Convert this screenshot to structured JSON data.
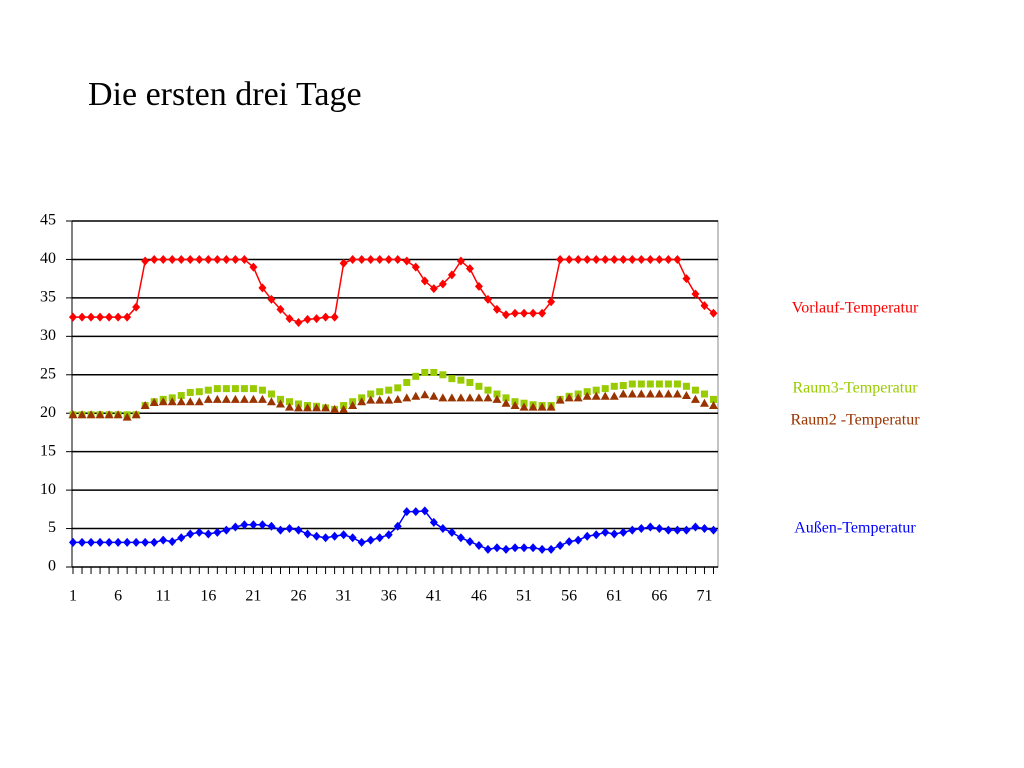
{
  "chart_data": {
    "type": "line",
    "title": "Die ersten drei Tage",
    "x": [
      1,
      2,
      3,
      4,
      5,
      6,
      7,
      8,
      9,
      10,
      11,
      12,
      13,
      14,
      15,
      16,
      17,
      18,
      19,
      20,
      21,
      22,
      23,
      24,
      25,
      26,
      27,
      28,
      29,
      30,
      31,
      32,
      33,
      34,
      35,
      36,
      37,
      38,
      39,
      40,
      41,
      42,
      43,
      44,
      45,
      46,
      47,
      48,
      49,
      50,
      51,
      52,
      53,
      54,
      55,
      56,
      57,
      58,
      59,
      60,
      61,
      62,
      63,
      64,
      65,
      66,
      67,
      68,
      69,
      70,
      71,
      72
    ],
    "xlim": [
      1,
      72.5
    ],
    "xticks": [
      1,
      6,
      11,
      16,
      21,
      26,
      31,
      36,
      41,
      46,
      51,
      56,
      61,
      66,
      71
    ],
    "ylim": [
      0,
      45
    ],
    "yticks": [
      0,
      5,
      10,
      15,
      20,
      25,
      30,
      35,
      40,
      45
    ],
    "grid": true,
    "series": [
      {
        "name": "Vorlauf-Temperatur",
        "color": "#ff0000",
        "marker": "diamond",
        "values": [
          32.5,
          32.5,
          32.5,
          32.5,
          32.5,
          32.5,
          32.5,
          33.8,
          39.8,
          40,
          40,
          40,
          40,
          40,
          40,
          40,
          40,
          40,
          40,
          40,
          39,
          36.3,
          34.8,
          33.5,
          32.3,
          31.8,
          32.2,
          32.3,
          32.5,
          32.5,
          39.5,
          40,
          40,
          40,
          40,
          40,
          40,
          39.8,
          39,
          37.2,
          36.2,
          36.8,
          38,
          39.8,
          38.8,
          36.5,
          34.8,
          33.5,
          32.8,
          33,
          33,
          33,
          33,
          34.5,
          40,
          40,
          40,
          40,
          40,
          40,
          40,
          40,
          40,
          40,
          40,
          40,
          40,
          40,
          37.5,
          35.5,
          34,
          33
        ]
      },
      {
        "name": "Raum3-Temperatur",
        "color": "#99cc00",
        "marker": "square",
        "values": [
          19.8,
          19.8,
          19.8,
          19.8,
          19.8,
          19.8,
          19.8,
          19.8,
          21,
          21.5,
          21.8,
          22,
          22.3,
          22.7,
          22.8,
          23,
          23.2,
          23.2,
          23.2,
          23.2,
          23.2,
          23,
          22.5,
          21.8,
          21.5,
          21.2,
          21,
          20.9,
          20.7,
          20.5,
          21,
          21.5,
          22,
          22.5,
          22.8,
          23,
          23.3,
          24,
          24.8,
          25.3,
          25.3,
          25,
          24.5,
          24.3,
          24,
          23.5,
          23,
          22.5,
          22,
          21.5,
          21.3,
          21.1,
          21,
          21,
          21.8,
          22.2,
          22.5,
          22.8,
          23,
          23.2,
          23.5,
          23.6,
          23.8,
          23.8,
          23.8,
          23.8,
          23.8,
          23.8,
          23.5,
          23,
          22.5,
          21.8
        ]
      },
      {
        "name": "Raum2 -Temperatur",
        "color": "#993300",
        "marker": "triangle",
        "values": [
          19.8,
          19.8,
          19.8,
          19.8,
          19.8,
          19.8,
          19.5,
          19.8,
          21,
          21.4,
          21.5,
          21.5,
          21.5,
          21.5,
          21.5,
          21.8,
          21.8,
          21.8,
          21.8,
          21.8,
          21.8,
          21.8,
          21.5,
          21.2,
          20.8,
          20.7,
          20.7,
          20.7,
          20.7,
          20.5,
          20.5,
          21,
          21.5,
          21.7,
          21.7,
          21.7,
          21.8,
          22,
          22.2,
          22.4,
          22.2,
          22,
          22,
          22,
          22,
          22,
          22,
          21.8,
          21.3,
          21,
          20.8,
          20.8,
          20.8,
          20.8,
          21.7,
          22,
          22,
          22.2,
          22.2,
          22.2,
          22.2,
          22.5,
          22.5,
          22.5,
          22.5,
          22.5,
          22.5,
          22.5,
          22.3,
          21.8,
          21.3,
          21
        ]
      },
      {
        "name": "Außen-Temperatur",
        "color": "#0000ff",
        "marker": "diamond",
        "values": [
          3.2,
          3.2,
          3.2,
          3.2,
          3.2,
          3.2,
          3.2,
          3.2,
          3.2,
          3.2,
          3.5,
          3.3,
          3.8,
          4.3,
          4.5,
          4.3,
          4.5,
          4.8,
          5.2,
          5.5,
          5.5,
          5.5,
          5.3,
          4.8,
          5,
          4.8,
          4.3,
          4,
          3.8,
          4,
          4.2,
          3.8,
          3.2,
          3.5,
          3.8,
          4.2,
          5.3,
          7.2,
          7.2,
          7.3,
          5.8,
          5,
          4.5,
          3.8,
          3.3,
          2.8,
          2.3,
          2.5,
          2.3,
          2.5,
          2.5,
          2.5,
          2.3,
          2.3,
          2.8,
          3.3,
          3.5,
          4,
          4.2,
          4.5,
          4.3,
          4.5,
          4.8,
          5,
          5.2,
          5,
          4.8,
          4.8,
          4.8,
          5.2,
          5,
          4.8
        ]
      }
    ]
  }
}
